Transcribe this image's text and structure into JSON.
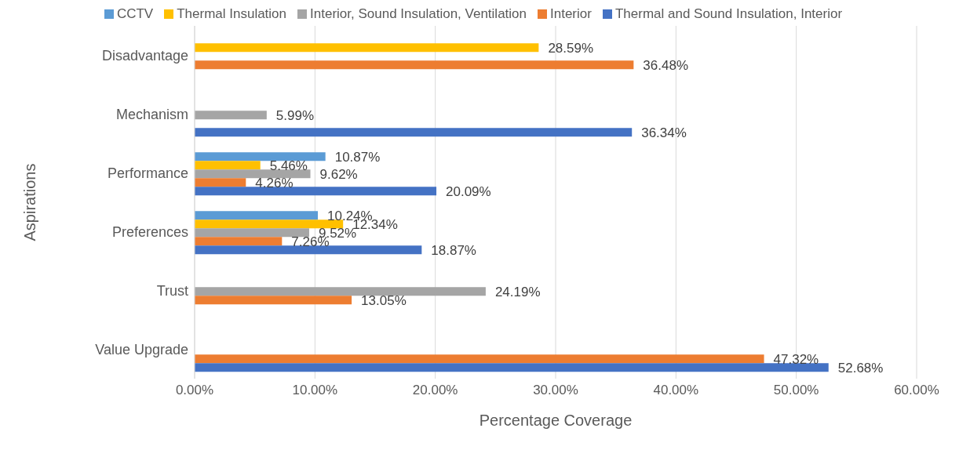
{
  "chart_data": {
    "type": "bar",
    "orientation": "horizontal",
    "xlabel": "Percentage Coverage",
    "ylabel": "Aspirations",
    "categories": [
      "Disadvantage",
      "Mechanism",
      "Performance",
      "Preferences",
      "Trust",
      "Value Upgrade"
    ],
    "series": [
      {
        "name": "CCTV",
        "color": "#5b9bd5",
        "values": [
          null,
          null,
          10.87,
          10.24,
          null,
          null
        ],
        "value_labels": [
          null,
          null,
          "10.87%",
          "10.24%",
          null,
          null
        ]
      },
      {
        "name": "Thermal Insulation",
        "color": "#ffc000",
        "values": [
          28.59,
          null,
          5.46,
          12.34,
          null,
          null
        ],
        "value_labels": [
          "28.59%",
          null,
          "5.46%",
          "12.34%",
          null,
          null
        ]
      },
      {
        "name": "Interior, Sound Insulation, Ventilation",
        "color": "#a5a5a5",
        "values": [
          null,
          5.99,
          9.62,
          9.52,
          24.19,
          null
        ],
        "value_labels": [
          null,
          "5.99%",
          "9.62%",
          "9.52%",
          "24.19%",
          null
        ]
      },
      {
        "name": "Interior",
        "color": "#ed7d31",
        "values": [
          36.48,
          null,
          4.26,
          7.26,
          13.05,
          47.32
        ],
        "value_labels": [
          "36.48%",
          null,
          "4.26%",
          "7.26%",
          "13.05%",
          "47.32%"
        ]
      },
      {
        "name": "Thermal and Sound Insulation, Interior",
        "color": "#4472c4",
        "values": [
          null,
          36.34,
          20.09,
          18.87,
          null,
          52.68
        ],
        "value_labels": [
          null,
          "36.34%",
          "20.09%",
          "18.87%",
          null,
          "52.68%"
        ]
      }
    ],
    "xlim": [
      0,
      60
    ],
    "xticks": [
      {
        "value": 0,
        "label": "0.00%"
      },
      {
        "value": 10,
        "label": "10.00%"
      },
      {
        "value": 20,
        "label": "20.00%"
      },
      {
        "value": 30,
        "label": "30.00%"
      },
      {
        "value": 40,
        "label": "40.00%"
      },
      {
        "value": 50,
        "label": "50.00%"
      },
      {
        "value": 60,
        "label": "60.00%"
      }
    ],
    "grid": "x",
    "legend": "top"
  }
}
